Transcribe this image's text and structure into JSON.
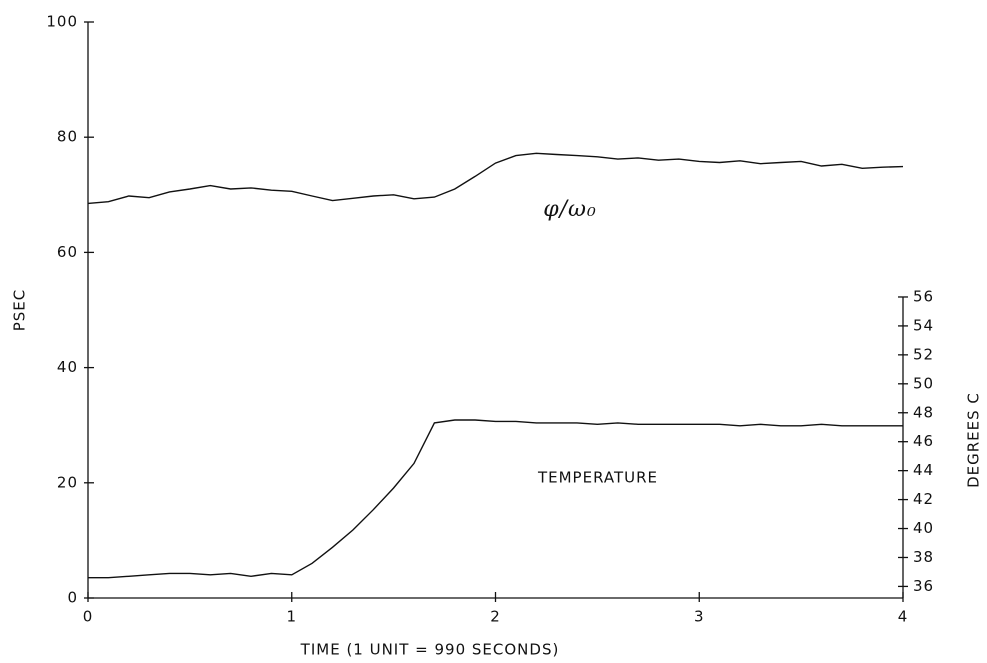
{
  "chart_data": {
    "type": "line",
    "x": [
      0,
      0.1,
      0.2,
      0.3,
      0.4,
      0.5,
      0.6,
      0.7,
      0.8,
      0.9,
      1,
      1.1,
      1.2,
      1.3,
      1.4,
      1.5,
      1.6,
      1.7,
      1.8,
      1.9,
      2,
      2.1,
      2.2,
      2.3,
      2.4,
      2.5,
      2.6,
      2.7,
      2.8,
      2.9,
      3,
      3.1,
      3.2,
      3.3,
      3.4,
      3.5,
      3.6,
      3.7,
      3.8,
      3.9,
      4
    ],
    "series": [
      {
        "name": "φ/ω₀",
        "color": "#111111",
        "values": [
          68.5,
          68.8,
          69.8,
          69.5,
          70.5,
          71.0,
          71.6,
          71.0,
          71.2,
          70.8,
          70.6,
          69.8,
          69.0,
          69.4,
          69.8,
          70.0,
          69.3,
          69.6,
          71.0,
          73.2,
          75.5,
          76.8,
          77.2,
          77.0,
          76.8,
          76.6,
          76.2,
          76.4,
          76.0,
          76.2,
          75.8,
          75.6,
          75.9,
          75.4,
          75.6,
          75.8,
          75.0,
          75.3,
          74.6,
          74.8,
          74.9
        ]
      },
      {
        "name": "TEMPERATURE",
        "color": "#111111",
        "axis": "y2",
        "values": [
          36.6,
          36.6,
          36.7,
          36.8,
          36.9,
          36.9,
          36.8,
          36.9,
          36.7,
          36.9,
          36.8,
          37.6,
          38.7,
          39.9,
          41.3,
          42.8,
          44.5,
          47.3,
          47.5,
          47.5,
          47.4,
          47.4,
          47.3,
          47.3,
          47.3,
          47.2,
          47.3,
          47.2,
          47.2,
          47.2,
          47.2,
          47.2,
          47.1,
          47.2,
          47.1,
          47.1,
          47.2,
          47.1,
          47.1,
          47.1,
          47.1
        ]
      }
    ],
    "xlabel": "TIME (1 UNIT = 990 SECONDS)",
    "ylabel": "PSEC",
    "y2label": "DEGREES C",
    "xlim": [
      0,
      4
    ],
    "xticks": [
      0,
      1,
      2,
      3,
      4
    ],
    "ylim": [
      0,
      100
    ],
    "yticks": [
      0,
      20,
      40,
      60,
      80,
      100
    ],
    "y2lim": [
      35.2,
      75
    ],
    "y2ticks": [
      36,
      38,
      40,
      42,
      44,
      46,
      48,
      50,
      52,
      54,
      56
    ],
    "grid": false
  }
}
